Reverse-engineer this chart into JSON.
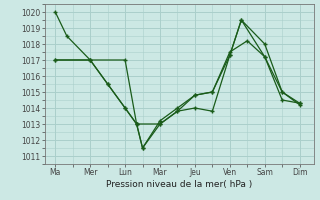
{
  "background_color": "#cce8e4",
  "grid_color": "#aacfcb",
  "line_color": "#1a5c1a",
  "xlabel": "Pression niveau de la mer( hPa )",
  "ylim": [
    1010.5,
    1020.5
  ],
  "yticks": [
    1011,
    1012,
    1013,
    1014,
    1015,
    1016,
    1017,
    1018,
    1019,
    1020
  ],
  "x_labels": [
    "Ma",
    "Mer",
    "Lun",
    "Mar",
    "Jeu",
    "Ven",
    "Sam",
    "Dim"
  ],
  "x_positions": [
    0,
    1,
    2,
    3,
    4,
    5,
    6,
    7
  ],
  "line1_x": [
    0,
    0.33,
    1,
    2,
    2.33,
    3,
    3.5,
    4,
    4.5,
    5,
    5.33,
    6,
    6.5,
    7
  ],
  "line1_y": [
    1020,
    1018.5,
    1017,
    1017,
    1013,
    1013,
    1013.8,
    1014,
    1013.8,
    1017.3,
    1019.5,
    1018,
    1015,
    1014.2
  ],
  "line2_x": [
    0,
    1,
    1.5,
    2,
    2.33,
    2.5,
    3,
    3.5,
    4,
    4.5,
    5,
    5.33,
    6,
    6.5,
    7
  ],
  "line2_y": [
    1017,
    1017,
    1015.5,
    1014,
    1013,
    1011.5,
    1013,
    1013.8,
    1014.8,
    1015,
    1017.3,
    1019.5,
    1017.2,
    1015,
    1014.3
  ],
  "line3_x": [
    0,
    1,
    1.5,
    2,
    2.33,
    2.5,
    3,
    3.5,
    4,
    4.5,
    5,
    5.5,
    6,
    6.5,
    7
  ],
  "line3_y": [
    1017,
    1017,
    1015.5,
    1014,
    1013,
    1011.5,
    1013.2,
    1014,
    1014.8,
    1015,
    1017.5,
    1018.2,
    1017.2,
    1014.5,
    1014.3
  ]
}
